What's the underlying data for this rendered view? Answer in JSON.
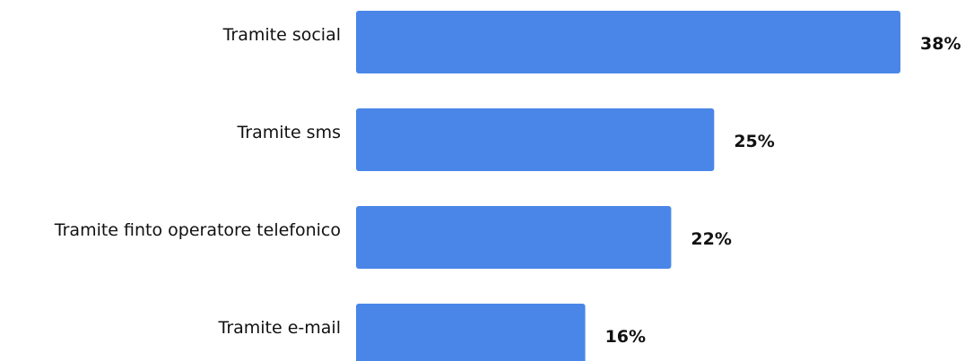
{
  "chart_data": {
    "type": "bar",
    "orientation": "horizontal",
    "categories": [
      "Tramite social",
      "Tramite sms",
      "Tramite finto operatore telefonico",
      "Tramite e-mail"
    ],
    "values": [
      38,
      25,
      22,
      16
    ],
    "value_labels": [
      "38%",
      "25%",
      "22%",
      "16%"
    ],
    "unit": "%",
    "bar_color": "#4a86e8",
    "title": "",
    "xlabel": "",
    "ylabel": "",
    "xlim": [
      0,
      38
    ],
    "grid": false,
    "legend": "none"
  }
}
